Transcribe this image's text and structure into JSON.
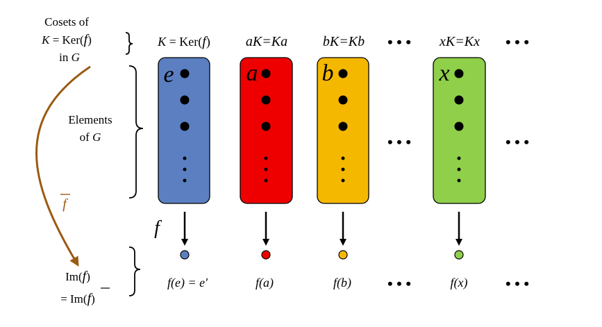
{
  "left_labels": {
    "cosets_line1": "Cosets of",
    "cosets_line2_K": "K",
    "cosets_line2_eq": " = Ker(",
    "cosets_line2_f": "f",
    "cosets_line2_close": ")",
    "cosets_line3_in": "in ",
    "cosets_line3_G": "G",
    "elements_line1": "Elements",
    "elements_line2_of": "of ",
    "elements_line2_G": "G",
    "fbar": "f",
    "im_line1_pre": "Im(",
    "im_line1_f": "f",
    "im_line1_close": ")",
    "im_line2_pre": "= Im(",
    "im_line2_f": "f",
    "im_line2_close": ")"
  },
  "map_label": "f",
  "ellipsis": "• • •",
  "vdots": "⋮",
  "cosets": [
    {
      "header_a": "K",
      "header_b": " = Ker(",
      "header_c": "f",
      "header_d": ")",
      "element": "e",
      "image": "f(e) = e′",
      "color": "#5b7fc1"
    },
    {
      "header_a": "aK",
      "header_b": "=",
      "header_c": "Ka",
      "header_d": "",
      "element": "a",
      "image": "f(a)",
      "color": "#ee0000"
    },
    {
      "header_a": "bK",
      "header_b": "=",
      "header_c": "Kb",
      "header_d": "",
      "element": "b",
      "image": "f(b)",
      "color": "#f5b800"
    },
    {
      "header_a": "xK",
      "header_b": "=",
      "header_c": "Kx",
      "header_d": "",
      "element": "x",
      "image": "f(x)",
      "color": "#8fcf4a"
    }
  ],
  "colors": {
    "fbar_arrow": "#9a5b13",
    "ink": "#000000",
    "box_border": "#000000"
  }
}
